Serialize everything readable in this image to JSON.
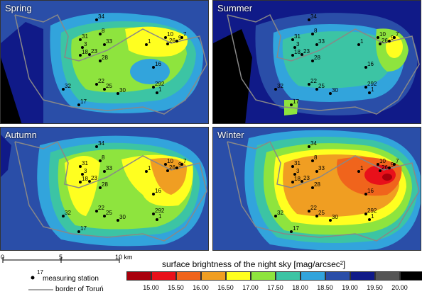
{
  "panels": [
    {
      "title": "Spring"
    },
    {
      "title": "Summer"
    },
    {
      "title": "Autumn"
    },
    {
      "title": "Winter"
    }
  ],
  "stations": [
    "34",
    "8",
    "31",
    "33",
    "3",
    "18",
    "23",
    "28",
    "1",
    "10",
    "26",
    "9",
    "7",
    "16",
    "22",
    "25",
    "32",
    "30",
    "292",
    "1",
    "17"
  ],
  "scale": {
    "start": "0",
    "mid": "5",
    "end": "10 km"
  },
  "legend": {
    "title": "surface brightness of the night sky [mag/arcsec²]",
    "items": [
      {
        "label": "15.00",
        "color": "#a8000c"
      },
      {
        "label": "15.50",
        "color": "#e8101a"
      },
      {
        "label": "16.00",
        "color": "#f0641c"
      },
      {
        "label": "16.50",
        "color": "#f09e22"
      },
      {
        "label": "17.00",
        "color": "#ffff20"
      },
      {
        "label": "17.50",
        "color": "#8ee43e"
      },
      {
        "label": "18.00",
        "color": "#3cc4a4"
      },
      {
        "label": "18.50",
        "color": "#32a4dc"
      },
      {
        "label": "19.00",
        "color": "#2a4ea8"
      },
      {
        "label": "19.50",
        "color": "#101a88"
      },
      {
        "label": "20.00",
        "color": "#555555"
      },
      {
        "label": "",
        "color": "#000000"
      }
    ]
  },
  "key": {
    "station_number": "17",
    "station_label": "measuring station",
    "border_label": "border of Toruń"
  }
}
